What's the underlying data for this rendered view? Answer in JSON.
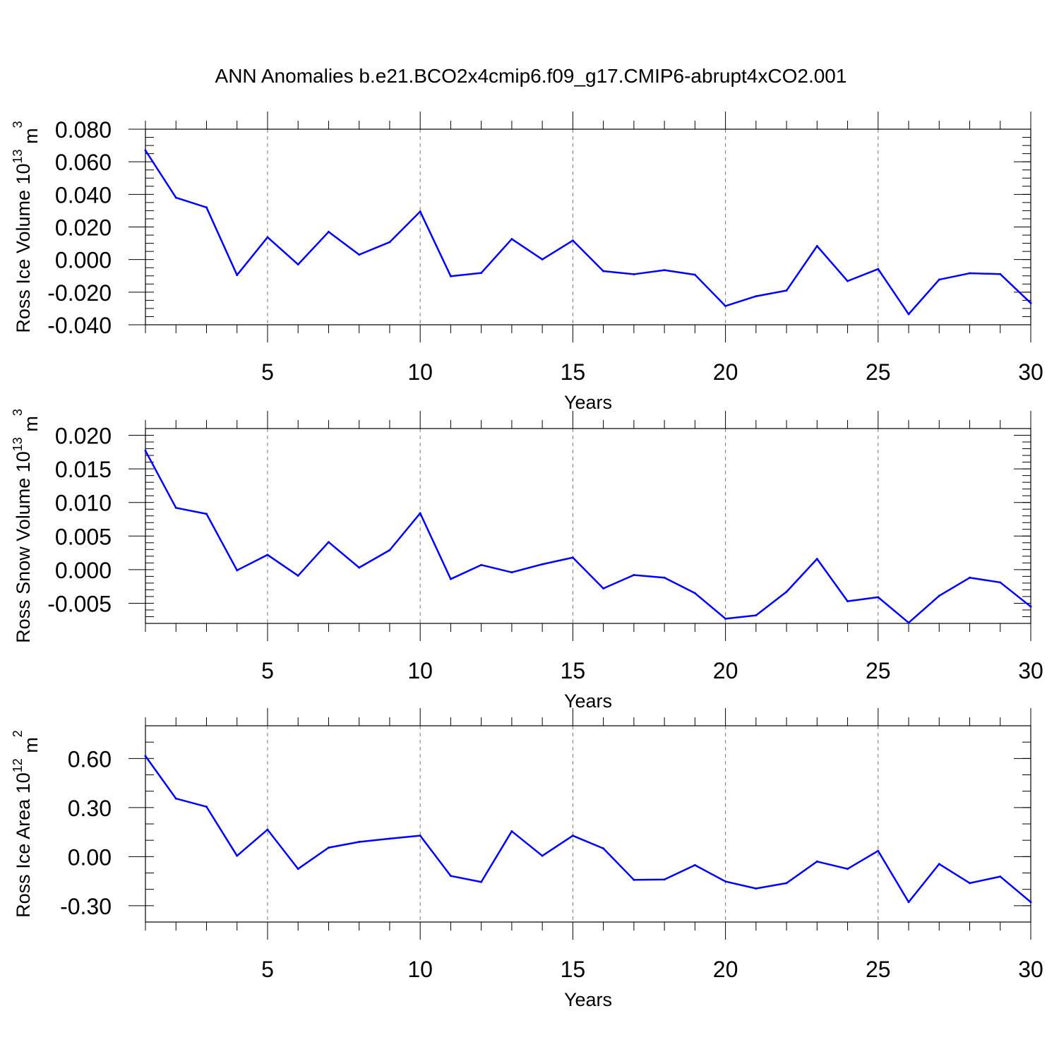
{
  "page": {
    "title": "ANN Anomalies b.e21.BCO2x4cmip6.f09_g17.CMIP6-abrupt4xCO2.001"
  },
  "colors": {
    "series": "#0000ff",
    "axis": "#000000",
    "grid": "#777777"
  },
  "chart_data": [
    {
      "type": "line",
      "ylabel": "Ross Ice Volume 10",
      "ylabel_exp": "13",
      "ylabel_unit": " m",
      "ylabel_unit_exp": "3",
      "xlabel": "Years",
      "xlim": [
        1,
        30
      ],
      "ylim": [
        -0.04,
        0.08
      ],
      "ytick_values": [
        -0.04,
        -0.02,
        0.0,
        0.02,
        0.04,
        0.06,
        0.08
      ],
      "ytick_labels": [
        "-0.040",
        "-0.020",
        "0.000",
        "0.020",
        "0.040",
        "0.060",
        "0.080"
      ],
      "ytick_minor_step": 0.005,
      "xtick_values": [
        5,
        10,
        15,
        20,
        25,
        30
      ],
      "xtick_labels": [
        "5",
        "10",
        "15",
        "20",
        "25",
        "30"
      ],
      "grid": "vertical dashed at major x ticks",
      "x": [
        1,
        2,
        3,
        4,
        5,
        6,
        7,
        8,
        9,
        10,
        11,
        12,
        13,
        14,
        15,
        16,
        17,
        18,
        19,
        20,
        21,
        22,
        23,
        24,
        25,
        26,
        27,
        28,
        29,
        30
      ],
      "values": [
        0.067,
        0.038,
        0.032,
        -0.0095,
        0.0137,
        -0.003,
        0.017,
        0.003,
        0.0107,
        0.0295,
        -0.0102,
        -0.0082,
        0.0126,
        0.0001,
        0.0117,
        -0.0071,
        -0.009,
        -0.0065,
        -0.0093,
        -0.0285,
        -0.0225,
        -0.019,
        0.0083,
        -0.0132,
        -0.0058,
        -0.0335,
        -0.0123,
        -0.0084,
        -0.0089,
        -0.0267
      ]
    },
    {
      "type": "line",
      "ylabel": "Ross Snow Volume 10",
      "ylabel_exp": "13",
      "ylabel_unit": " m",
      "ylabel_unit_exp": "3",
      "xlabel": "Years",
      "xlim": [
        1,
        30
      ],
      "ylim": [
        -0.008,
        0.021
      ],
      "ytick_values": [
        -0.005,
        0.0,
        0.005,
        0.01,
        0.015,
        0.02
      ],
      "ytick_labels": [
        "-0.005",
        "0.000",
        "0.005",
        "0.010",
        "0.015",
        "0.020"
      ],
      "ytick_minor_step": 0.001,
      "xtick_values": [
        5,
        10,
        15,
        20,
        25,
        30
      ],
      "xtick_labels": [
        "5",
        "10",
        "15",
        "20",
        "25",
        "30"
      ],
      "grid": "vertical dashed at major x ticks",
      "x": [
        1,
        2,
        3,
        4,
        5,
        6,
        7,
        8,
        9,
        10,
        11,
        12,
        13,
        14,
        15,
        16,
        17,
        18,
        19,
        20,
        21,
        22,
        23,
        24,
        25,
        26,
        27,
        28,
        29,
        30
      ],
      "values": [
        0.0177,
        0.0092,
        0.0083,
        -0.0001,
        0.0022,
        -0.0009,
        0.0041,
        0.0003,
        0.0029,
        0.0084,
        -0.0014,
        0.0007,
        -0.0004,
        0.0008,
        0.0018,
        -0.0028,
        -0.0008,
        -0.0012,
        -0.0035,
        -0.0073,
        -0.0068,
        -0.0033,
        0.0016,
        -0.0047,
        -0.0041,
        -0.0079,
        -0.0039,
        -0.0012,
        -0.0019,
        -0.0055
      ]
    },
    {
      "type": "line",
      "ylabel": "Ross Ice Area 10",
      "ylabel_exp": "12",
      "ylabel_unit": " m",
      "ylabel_unit_exp": "2",
      "xlabel": "Years",
      "xlim": [
        1,
        30
      ],
      "ylim": [
        -0.4,
        0.8
      ],
      "ytick_values": [
        -0.3,
        0.0,
        0.3,
        0.6
      ],
      "ytick_labels": [
        "-0.30",
        "0.00",
        "0.30",
        "0.60"
      ],
      "ytick_minor_step": 0.1,
      "xtick_values": [
        5,
        10,
        15,
        20,
        25,
        30
      ],
      "xtick_labels": [
        "5",
        "10",
        "15",
        "20",
        "25",
        "30"
      ],
      "grid": "vertical dashed at major x ticks",
      "x": [
        1,
        2,
        3,
        4,
        5,
        6,
        7,
        8,
        9,
        10,
        11,
        12,
        13,
        14,
        15,
        16,
        17,
        18,
        19,
        20,
        21,
        22,
        23,
        24,
        25,
        26,
        27,
        28,
        29,
        30
      ],
      "values": [
        0.615,
        0.355,
        0.305,
        0.005,
        0.165,
        -0.075,
        0.055,
        0.09,
        0.11,
        0.128,
        -0.118,
        -0.155,
        0.155,
        0.005,
        0.128,
        0.05,
        -0.142,
        -0.14,
        -0.052,
        -0.152,
        -0.195,
        -0.162,
        -0.03,
        -0.075,
        0.035,
        -0.278,
        -0.045,
        -0.162,
        -0.122,
        -0.278
      ]
    }
  ]
}
